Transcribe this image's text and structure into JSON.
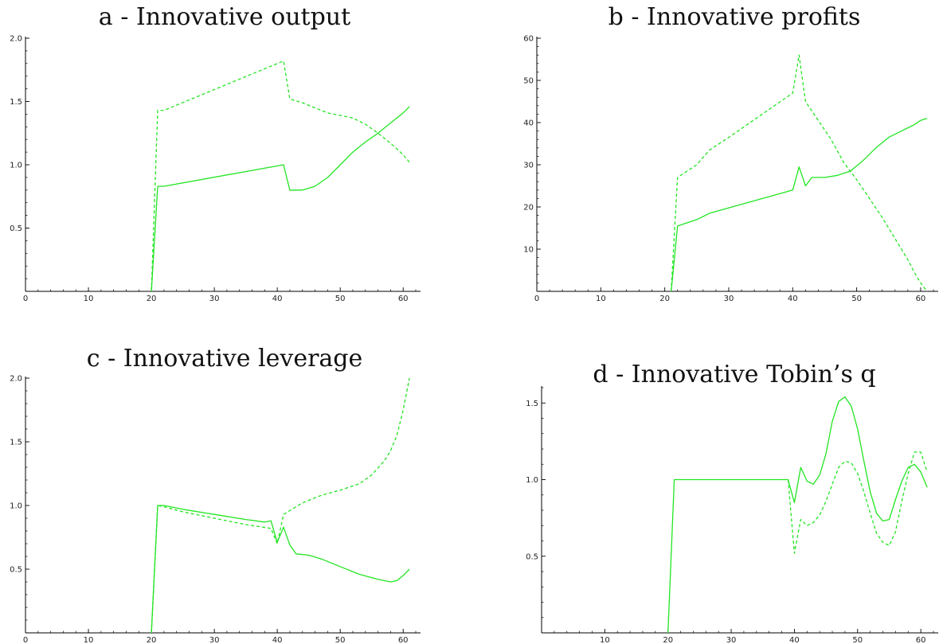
{
  "colors": {
    "series": "#22e522",
    "axis": "#000000",
    "background": "#ffffff"
  },
  "chart_data": [
    {
      "type": "line",
      "title": "a - Innovative output",
      "xlim": [
        0,
        62
      ],
      "ylim": [
        0,
        2.0
      ],
      "xticks": [
        0,
        10,
        20,
        30,
        40,
        50,
        60
      ],
      "yticks": [
        0.5,
        1.0,
        1.5,
        2.0
      ],
      "series": [
        {
          "style": "solid",
          "x": [
            20,
            21,
            22,
            41,
            42,
            44,
            46,
            48,
            50,
            52,
            54,
            56,
            58,
            60,
            61
          ],
          "y": [
            0,
            0.83,
            0.83,
            1.0,
            0.8,
            0.8,
            0.83,
            0.9,
            1.0,
            1.1,
            1.18,
            1.25,
            1.33,
            1.41,
            1.46
          ]
        },
        {
          "style": "dashed",
          "x": [
            20,
            21,
            22,
            41,
            42,
            44,
            46,
            48,
            50,
            52,
            54,
            56,
            58,
            60,
            61
          ],
          "y": [
            0,
            1.43,
            1.43,
            1.82,
            1.52,
            1.49,
            1.45,
            1.41,
            1.39,
            1.37,
            1.32,
            1.25,
            1.17,
            1.08,
            1.02
          ]
        }
      ]
    },
    {
      "type": "line",
      "title": "b - Innovative profits",
      "xlim": [
        0,
        62
      ],
      "ylim": [
        0,
        60
      ],
      "xticks": [
        0,
        10,
        20,
        30,
        40,
        50,
        60
      ],
      "yticks": [
        10,
        20,
        30,
        40,
        50,
        60
      ],
      "series": [
        {
          "style": "solid",
          "x": [
            21,
            22,
            25,
            27,
            30,
            40,
            41,
            42,
            43,
            45,
            47,
            49,
            51,
            53,
            55,
            57,
            59,
            60,
            61
          ],
          "y": [
            0,
            15.5,
            17,
            18.5,
            19.8,
            24,
            29.5,
            25,
            27,
            27,
            27.5,
            28.5,
            31,
            34,
            36.5,
            38,
            39.5,
            40.5,
            41
          ]
        },
        {
          "style": "dashed",
          "x": [
            21,
            22,
            25,
            27,
            30,
            40,
            41,
            42,
            44,
            46,
            48,
            50,
            52,
            54,
            56,
            58,
            59,
            60,
            61
          ],
          "y": [
            0,
            27,
            30,
            33.5,
            36.5,
            47,
            56,
            45,
            40.5,
            36,
            30.5,
            26.5,
            22,
            17.5,
            12.5,
            7.5,
            4.5,
            2,
            0
          ]
        }
      ]
    },
    {
      "type": "line",
      "title": "c - Innovative leverage",
      "xlim": [
        0,
        62
      ],
      "ylim": [
        0,
        2.0
      ],
      "xticks": [
        0,
        10,
        20,
        30,
        40,
        50,
        60
      ],
      "yticks": [
        0.5,
        1.0,
        1.5,
        2.0
      ],
      "series": [
        {
          "style": "solid",
          "x": [
            20,
            21,
            22,
            25,
            30,
            35,
            38,
            39,
            40,
            41,
            42,
            43,
            45,
            47,
            50,
            53,
            56,
            58,
            59,
            60,
            61
          ],
          "y": [
            0,
            1.0,
            1.0,
            0.97,
            0.93,
            0.89,
            0.87,
            0.88,
            0.71,
            0.83,
            0.69,
            0.62,
            0.61,
            0.58,
            0.52,
            0.46,
            0.42,
            0.4,
            0.41,
            0.45,
            0.5
          ]
        },
        {
          "style": "dashed",
          "x": [
            20,
            21,
            22,
            25,
            30,
            35,
            39,
            40,
            41,
            44,
            47,
            50,
            53,
            55,
            57,
            58,
            59,
            60,
            61
          ],
          "y": [
            0,
            1.0,
            0.99,
            0.95,
            0.9,
            0.85,
            0.82,
            0.7,
            0.93,
            1.02,
            1.08,
            1.12,
            1.17,
            1.24,
            1.35,
            1.43,
            1.55,
            1.75,
            2.0
          ]
        }
      ]
    },
    {
      "type": "line",
      "title": "d - Innovative Tobin’s q",
      "xlim": [
        0,
        62
      ],
      "ylim": [
        0,
        1.6
      ],
      "xticks": [
        10,
        20,
        30,
        40,
        50,
        60
      ],
      "yticks": [
        0.5,
        1.0,
        1.5
      ],
      "series": [
        {
          "style": "solid",
          "x": [
            20,
            21,
            39,
            40,
            41,
            42,
            43,
            44,
            45,
            46,
            47,
            48,
            49,
            50,
            51,
            52,
            53,
            54,
            55,
            56,
            57,
            58,
            59,
            60,
            61
          ],
          "y": [
            0,
            1.0,
            1.0,
            0.85,
            1.08,
            0.99,
            0.97,
            1.03,
            1.17,
            1.38,
            1.51,
            1.54,
            1.48,
            1.33,
            1.12,
            0.92,
            0.78,
            0.73,
            0.74,
            0.87,
            0.99,
            1.08,
            1.1,
            1.05,
            0.95
          ]
        },
        {
          "style": "dashed",
          "x": [
            39,
            40,
            41,
            42,
            43,
            44,
            45,
            46,
            47,
            48,
            49,
            50,
            51,
            52,
            53,
            54,
            55,
            56,
            57,
            58,
            59,
            60,
            61
          ],
          "y": [
            1.0,
            0.52,
            0.74,
            0.7,
            0.72,
            0.77,
            0.86,
            0.97,
            1.08,
            1.12,
            1.11,
            1.04,
            0.92,
            0.78,
            0.65,
            0.59,
            0.57,
            0.66,
            0.86,
            1.04,
            1.18,
            1.18,
            1.05
          ]
        }
      ]
    }
  ]
}
